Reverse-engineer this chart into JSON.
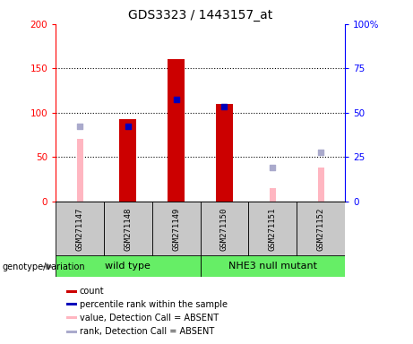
{
  "title": "GDS3323 / 1443157_at",
  "samples": [
    "GSM271147",
    "GSM271148",
    "GSM271149",
    "GSM271150",
    "GSM271151",
    "GSM271152"
  ],
  "red_bars": [
    0,
    93,
    160,
    110,
    0,
    0
  ],
  "blue_squares_val": [
    null,
    85,
    115,
    107,
    null,
    null
  ],
  "pink_bars": [
    70,
    0,
    0,
    0,
    15,
    38
  ],
  "lightblue_squares_val": [
    85,
    null,
    null,
    null,
    38,
    55
  ],
  "ylim_left": [
    0,
    200
  ],
  "ylim_right": [
    0,
    100
  ],
  "left_yticks": [
    0,
    50,
    100,
    150,
    200
  ],
  "right_yticks": [
    0,
    25,
    50,
    75,
    100
  ],
  "right_yticklabels": [
    "0",
    "25",
    "50",
    "75",
    "100%"
  ],
  "group_wild_type": "wild type",
  "group_nhe3": "NHE3 null mutant",
  "group_color_wt": "#66EE66",
  "group_color_nhe3": "#66EE66",
  "genotype_label": "genotype/variation",
  "legend_items": [
    {
      "label": "count",
      "color": "#CC0000"
    },
    {
      "label": "percentile rank within the sample",
      "color": "#0000BB"
    },
    {
      "label": "value, Detection Call = ABSENT",
      "color": "#FFB6C1"
    },
    {
      "label": "rank, Detection Call = ABSENT",
      "color": "#AAAACC"
    }
  ],
  "bar_width": 0.35,
  "pink_bar_width": 0.13,
  "dotted_lines": [
    50,
    100,
    150
  ],
  "cell_bg": "#C8C8C8",
  "plot_bg": "white"
}
